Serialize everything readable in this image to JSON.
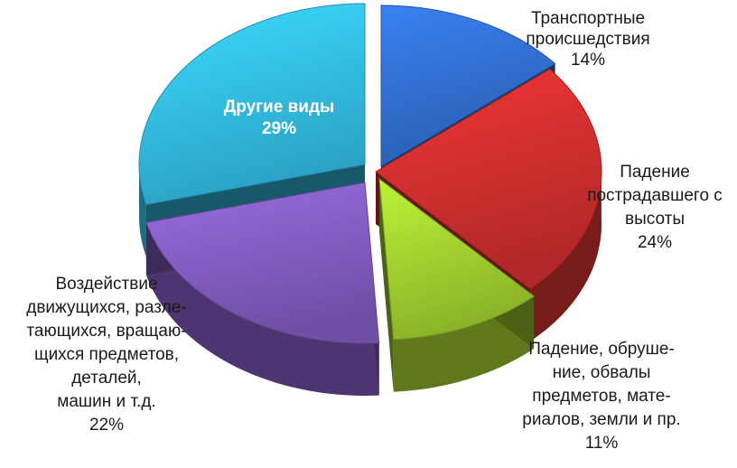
{
  "chart_data": {
    "type": "pie",
    "title": "",
    "slices": [
      {
        "label_lines": [
          "Транспортные",
          "происшедствия"
        ],
        "value": 14,
        "value_label": "14%",
        "color": "#2e67c2"
      },
      {
        "label_lines": [
          "Падение",
          "пострадавшего с",
          "высоты"
        ],
        "value": 24,
        "value_label": "24%",
        "color": "#c22b2b"
      },
      {
        "label_lines": [
          "Падение, обруше-",
          "ние, обвалы",
          "предметов, мате-",
          "риалов, земли и пр."
        ],
        "value": 11,
        "value_label": "11%",
        "color": "#97c22c"
      },
      {
        "label_lines": [
          "Воздействие",
          "движущихся, разле-",
          "тающихся, вращаю-",
          "щихся предметов,",
          "деталей,",
          "машин и т.д."
        ],
        "value": 22,
        "value_label": "22%",
        "color": "#7a56b4"
      },
      {
        "label_lines": [
          "Другие виды"
        ],
        "value": 29,
        "value_label": "29%",
        "color": "#2fb0d6"
      }
    ]
  }
}
